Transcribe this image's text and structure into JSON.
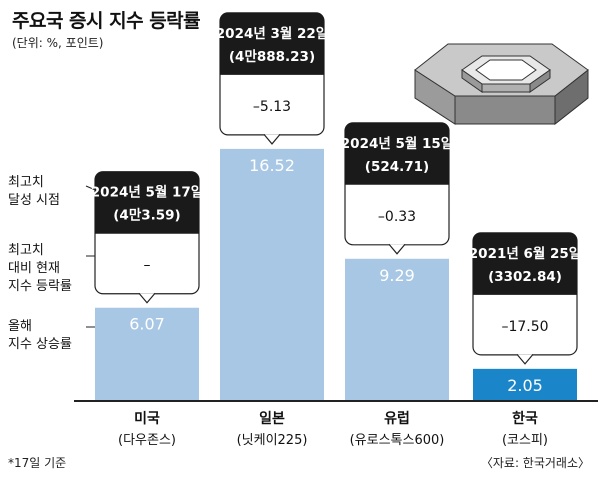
{
  "title": "주요국 증시 지수 등락률",
  "unit_note": "(단위: %, 포인트)",
  "footnote": "*17일 기준",
  "source": "〈자료: 한국거래소〉",
  "legend_labels": [
    [
      "최고치",
      "달성 시점"
    ],
    [
      "최고치",
      "대비 현재",
      "지수 등락률"
    ],
    [
      "올해",
      "지수 상승률"
    ]
  ],
  "colors": {
    "bar": "#a7c7e4",
    "bar_highlight": "#1a86c9",
    "callout_header": "#1a1a1a",
    "callout_border": "#222222"
  },
  "icon": "hexagonal-3d-block-illustration",
  "chart_data": {
    "type": "bar",
    "title": "주요국 증시 지수 등락률",
    "ylabel": "",
    "xlabel": "",
    "ylim": [
      0,
      20
    ],
    "categories": [
      {
        "name": "미국",
        "index": "(다우존스)"
      },
      {
        "name": "일본",
        "index": "(닛케이225)"
      },
      {
        "name": "유럽",
        "index": "(유로스톡스600)"
      },
      {
        "name": "한국",
        "index": "(코스피)"
      }
    ],
    "values": [
      6.07,
      16.52,
      9.29,
      2.05
    ],
    "value_labels": [
      "6.07",
      "16.52",
      "9.29",
      "2.05"
    ],
    "highlight_index": 3,
    "callouts": [
      {
        "date": "2024년 5월 17일",
        "level": "(4만3.59)",
        "change": "–"
      },
      {
        "date": "2024년 3월 22일",
        "level": "(4만888.23)",
        "change": "–5.13"
      },
      {
        "date": "2024년 5월 15일",
        "level": "(524.71)",
        "change": "–0.33"
      },
      {
        "date": "2021년 6월 25일",
        "level": "(3302.84)",
        "change": "–17.50"
      }
    ]
  }
}
